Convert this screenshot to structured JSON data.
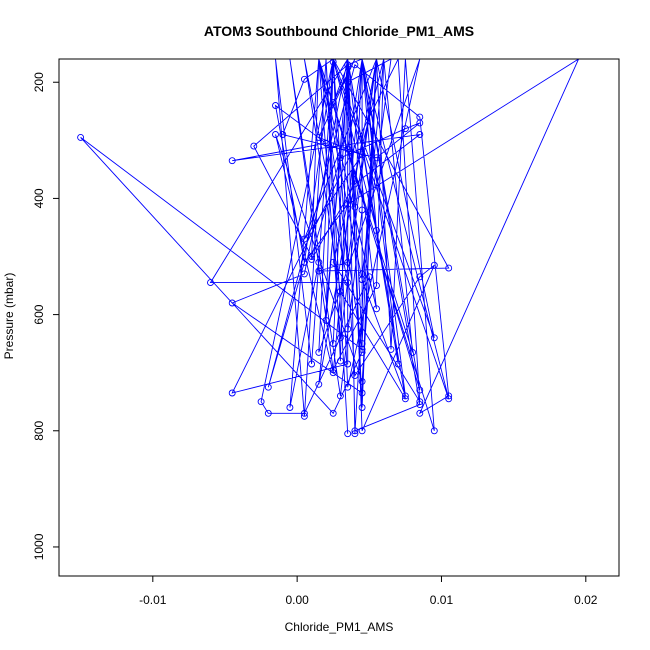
{
  "chart_data": {
    "type": "line",
    "title": "ATOM3 Southbound Chloride_PM1_AMS",
    "xlabel": "Chloride_PM1_AMS",
    "ylabel": "Pressure (mbar)",
    "xlim": [
      -0.0165,
      0.0223
    ],
    "ylim": [
      1050,
      160
    ],
    "y_reversed": true,
    "grid": false,
    "legend": "none",
    "marker": "open-circle",
    "x_ticks": [
      {
        "value": -0.01,
        "label": "-0.01"
      },
      {
        "value": 0.0,
        "label": "0.00"
      },
      {
        "value": 0.01,
        "label": "0.01"
      },
      {
        "value": 0.02,
        "label": "0.02"
      }
    ],
    "y_ticks": [
      {
        "value": 200,
        "label": "200"
      },
      {
        "value": 400,
        "label": "400"
      },
      {
        "value": 600,
        "label": "600"
      },
      {
        "value": 800,
        "label": "800"
      },
      {
        "value": 1000,
        "label": "1000"
      }
    ],
    "series": [
      {
        "color": "#0000ff",
        "x": [
          0.0025,
          0.0005,
          -0.001,
          0.0055,
          0.0085,
          0.0075,
          0.003,
          0.001,
          -0.003,
          0.0035,
          0.0025,
          0.004,
          0.0015,
          0.0045,
          0.0005,
          0.0055,
          0.0035,
          0.0015,
          0.0105,
          0.0025,
          0.0005,
          -0.002,
          0.004,
          0.0085,
          0.0105,
          0.0085,
          0.0195,
          0.0035,
          0.0005,
          -0.0015,
          0.002,
          -0.0045,
          0.0085,
          0.004,
          0.001,
          0.0015,
          0.008,
          0.006,
          0.0055,
          0.0025,
          -0.0005,
          0.003,
          0.0045,
          0.0045,
          0.0065,
          0.0035,
          0.0015,
          0.0055,
          0.0045,
          -0.0045,
          0.0005,
          0.0035,
          0.0035,
          -0.0045,
          0.007,
          0.0085,
          0.0025,
          0.006,
          0.0045,
          0.0015,
          0.003,
          0.0055,
          0.0095,
          0.0025,
          0.0055,
          0.0045,
          0.0025,
          -0.0015,
          0.0045,
          0.005,
          0.0005,
          -0.002,
          -0.0025,
          0.0025,
          0.004,
          0.0085,
          0.0095,
          0.0045,
          0.0035,
          0.0015,
          0.0045,
          -0.015,
          0.0025,
          0.0045,
          0.0045,
          0.007,
          0.0035,
          0.0075,
          0.003,
          0.0005,
          0.0035,
          -0.006,
          0.0035,
          0.004,
          0.0045,
          0.0085,
          0.0035,
          0.0045,
          0.0045,
          0.0075,
          0.0045,
          0.0105,
          0.0025,
          0.0015,
          0.0085,
          0.0035,
          0.0025,
          0.0015,
          -0.0005,
          0.0015,
          0.0055,
          0.0035,
          0.0035,
          0.0035,
          0.0045,
          0.0085,
          0.004,
          0.0035,
          0.002,
          0.0025,
          0.001,
          -0.0015,
          0.0005,
          0.002,
          0.0035,
          0.002,
          0.003,
          0.0035,
          0.0045,
          0.0055,
          0.004,
          0.0035,
          0.0025,
          0.0035,
          0.0045,
          0.0055,
          0.0065,
          0.0075,
          0.0095,
          0.0015
        ],
        "y": [
          160,
          195,
          290,
          330,
          270,
          280,
          330,
          500,
          310,
          170,
          235,
          160,
          295,
          325,
          470,
          160,
          510,
          525,
          520,
          160,
          510,
          725,
          170,
          260,
          740,
          770,
          160,
          410,
          510,
          240,
          305,
          335,
          290,
          375,
          505,
          160,
          665,
          160,
          550,
          695,
          160,
          740,
          420,
          530,
          160,
          200,
          720,
          160,
          735,
          580,
          530,
          160,
          685,
          735,
          160,
          750,
          510,
          160,
          540,
          160,
          640,
          160,
          640,
          160,
          455,
          160,
          700,
          290,
          715,
          535,
          770,
          770,
          750,
          160,
          705,
          535,
          515,
          800,
          160,
          160,
          660,
          295,
          770,
          665,
          160,
          685,
          160,
          745,
          560,
          160,
          545,
          545,
          160,
          415,
          160,
          730,
          315,
          160,
          540,
          740,
          160,
          745,
          165,
          665,
          160,
          725,
          160,
          510,
          760,
          160,
          590,
          160,
          625,
          170,
          160,
          755,
          800,
          160,
          610,
          160,
          685,
          160,
          775,
          160,
          805,
          160,
          680,
          160,
          650,
          160,
          805,
          160,
          650,
          160,
          760,
          160,
          660,
          160,
          800,
          160
        ]
      }
    ]
  }
}
